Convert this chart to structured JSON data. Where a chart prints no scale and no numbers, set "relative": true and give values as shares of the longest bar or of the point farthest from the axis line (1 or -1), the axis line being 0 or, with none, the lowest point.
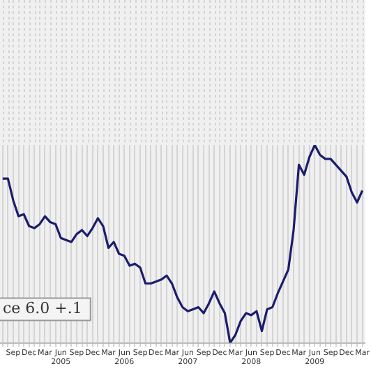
{
  "chart_data": {
    "type": "line",
    "relative": true,
    "grid": "x",
    "legend": false,
    "marker": "none",
    "line_style": "solid",
    "categories": [
      null,
      null,
      "Sep",
      null,
      null,
      "Dec",
      null,
      null,
      "Mar",
      null,
      null,
      "Jun\n2005",
      null,
      null,
      "Sep",
      null,
      null,
      "Dec",
      null,
      null,
      "Mar",
      null,
      null,
      "Jun\n2006",
      null,
      null,
      "Sep",
      null,
      null,
      "Dec",
      null,
      null,
      "Mar",
      null,
      null,
      "Jun\n2007",
      null,
      null,
      "Sep",
      null,
      null,
      "Dec",
      null,
      null,
      "Mar",
      null,
      null,
      "Jun\n2008",
      null,
      null,
      "Sep",
      null,
      null,
      "Dec",
      null,
      null,
      "Mar",
      null,
      null,
      "Jun\n2009",
      null,
      null,
      "Sep",
      null,
      null,
      "Dec",
      null,
      null,
      "Mar"
    ],
    "series": [
      {
        "color": "#1c1c6e",
        "values": [
          0.83,
          0.83,
          0.72,
          0.64,
          0.65,
          0.59,
          0.58,
          0.6,
          0.64,
          0.61,
          0.6,
          0.53,
          0.52,
          0.51,
          0.55,
          0.57,
          0.54,
          0.58,
          0.63,
          0.59,
          0.48,
          0.51,
          0.45,
          0.44,
          0.39,
          0.4,
          0.38,
          0.3,
          0.3,
          0.31,
          0.32,
          0.34,
          0.3,
          0.23,
          0.18,
          0.16,
          0.17,
          0.18,
          0.15,
          0.2,
          0.26,
          0.2,
          0.15,
          0,
          0.04,
          0.11,
          0.15,
          0.14,
          0.16,
          0.06,
          0.17,
          0.18,
          0.25,
          0.31,
          0.37,
          0.57,
          0.9,
          0.85,
          0.94,
          1.0,
          0.95,
          0.93,
          0.93,
          0.9,
          0.87,
          0.84,
          0.76,
          0.71,
          0.77
        ]
      }
    ],
    "annotations": [
      "ce 6.0 +.1"
    ]
  }
}
